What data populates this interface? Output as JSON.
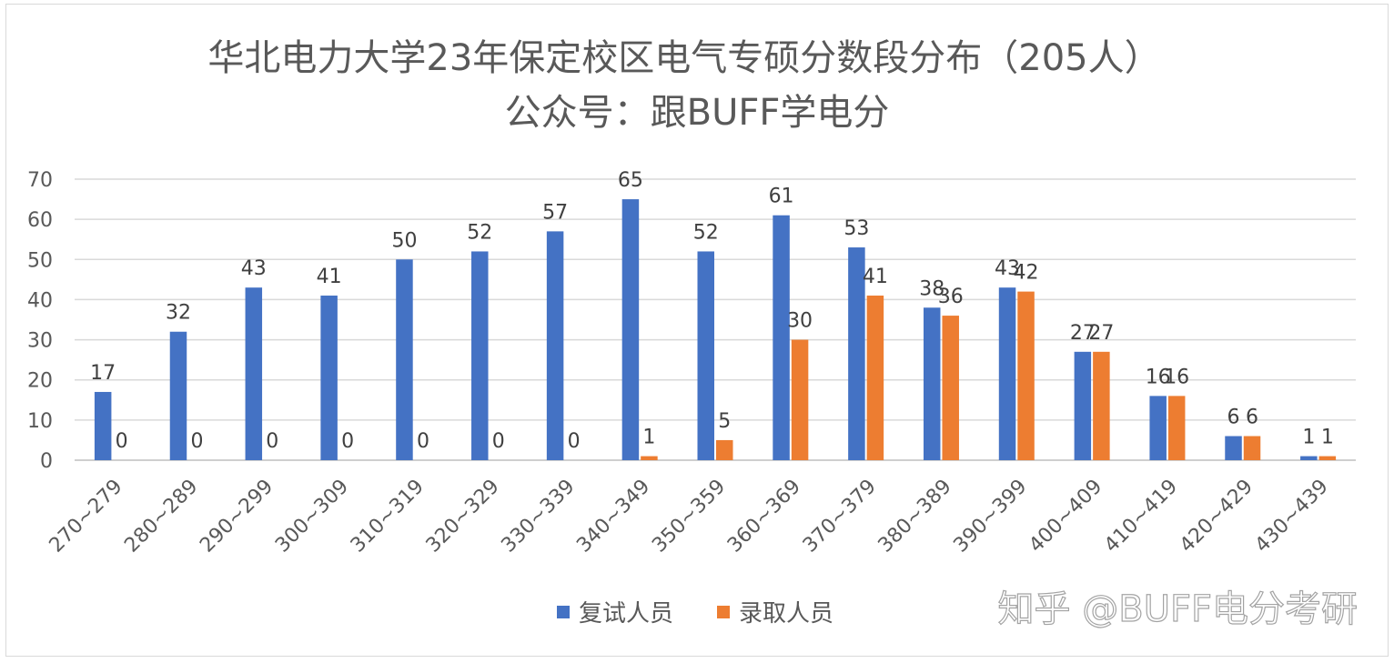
{
  "chart_data": {
    "type": "bar",
    "title": "华北电力大学23年保定校区电气专硕分数段分布（205人）",
    "subtitle": "公众号：跟BUFF学电分",
    "categories": [
      "270~279",
      "280~289",
      "290~299",
      "300~309",
      "310~319",
      "320~329",
      "330~339",
      "340~349",
      "350~359",
      "360~369",
      "370~379",
      "380~389",
      "390~399",
      "400~409",
      "410~419",
      "420~429",
      "430~439"
    ],
    "series": [
      {
        "name": "复试人员",
        "color": "#4472C4",
        "values": [
          17,
          32,
          43,
          41,
          50,
          52,
          57,
          65,
          52,
          61,
          53,
          38,
          43,
          27,
          16,
          6,
          1
        ]
      },
      {
        "name": "录取人员",
        "color": "#ED7D31",
        "values": [
          0,
          0,
          0,
          0,
          0,
          0,
          0,
          1,
          5,
          30,
          41,
          36,
          42,
          27,
          16,
          6,
          1
        ]
      }
    ],
    "ylim": [
      0,
      70
    ],
    "yticks": [
      0,
      10,
      20,
      30,
      40,
      50,
      60,
      70
    ],
    "grid": true,
    "legend": "bottom"
  },
  "watermark": "知乎 @BUFF电分考研"
}
